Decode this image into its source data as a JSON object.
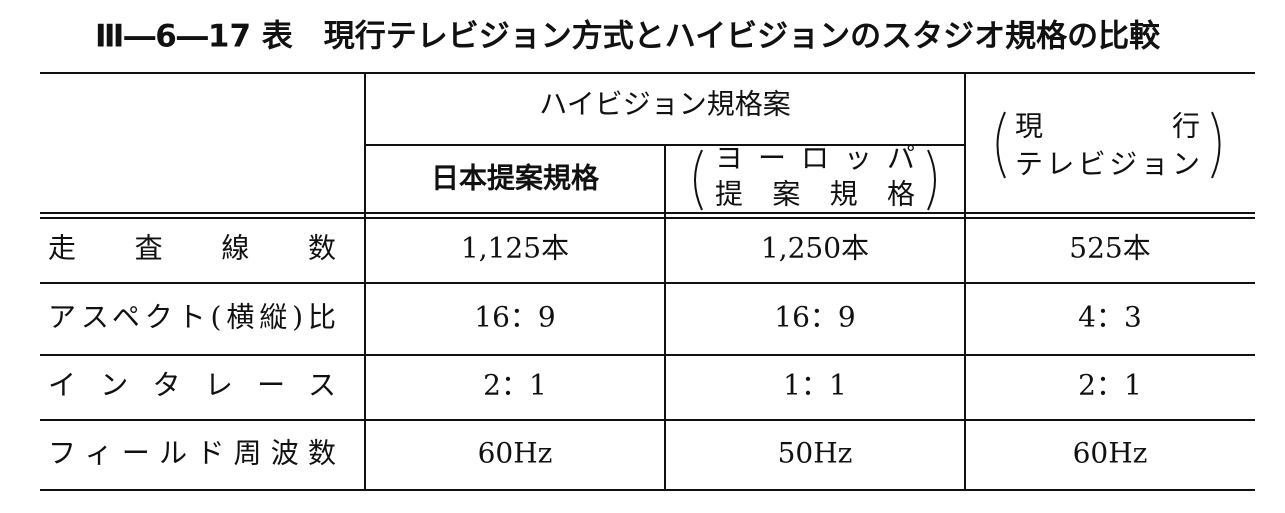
{
  "title": "Ⅲ―6―17 表　現行テレビジョン方式とハイビジョンのスタジオ規格の比較",
  "table": {
    "group_header": "ハイビジョン規格案",
    "columns": [
      {
        "lines": [
          "日本提案規格"
        ]
      },
      {
        "lines": [
          "ヨーロッパ",
          "提案規格"
        ]
      },
      {
        "lines": [
          "現行",
          "テレビジョン"
        ]
      }
    ],
    "rows": [
      {
        "label": "走査線数",
        "cells": [
          "1,125本",
          "1,250本",
          "525本"
        ]
      },
      {
        "label": "アスペクト(横縦)比",
        "cells": [
          "16：9",
          "16：9",
          "4：3"
        ]
      },
      {
        "label": "インタレース",
        "cells": [
          "2：1",
          "1：1",
          "2：1"
        ]
      },
      {
        "label": "フィールド周波数",
        "cells": [
          "60Hz",
          "50Hz",
          "60Hz"
        ]
      }
    ]
  }
}
